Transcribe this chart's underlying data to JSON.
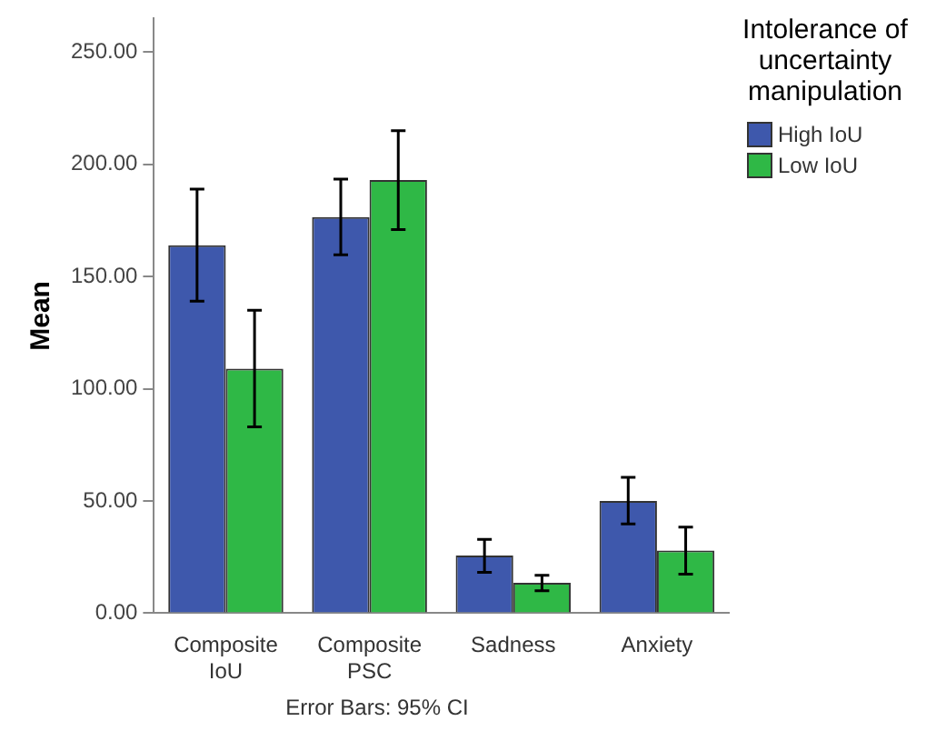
{
  "chart_data": {
    "type": "bar",
    "ylabel": "Mean",
    "legend_title": "Intolerance of uncertainty manipulation",
    "legend": "top right",
    "grid": false,
    "categories": [
      "Composite IoU",
      "Composite PSC",
      "Sadness",
      "Anxiety"
    ],
    "series": [
      {
        "name": "High IoU",
        "color": "#3e58ac",
        "values": [
          164,
          176.5,
          25.7,
          50
        ],
        "errors": [
          [
            139,
            189
          ],
          [
            159.7,
            193.4
          ],
          [
            18.2,
            32.9
          ],
          [
            39.8,
            60.5
          ]
        ]
      },
      {
        "name": "Low IoU",
        "color": "#2fb846",
        "values": [
          109,
          193,
          13.5,
          27.9
        ],
        "errors": [
          [
            83,
            135
          ],
          [
            171,
            215
          ],
          [
            10,
            16.9
          ],
          [
            17.4,
            38.4
          ]
        ]
      }
    ],
    "ylim": [
      0,
      265
    ],
    "yticks": [
      {
        "value": 0,
        "label": "0.00"
      },
      {
        "value": 50,
        "label": "50.00"
      },
      {
        "value": 100,
        "label": "100.00"
      },
      {
        "value": 150,
        "label": "150.00"
      },
      {
        "value": 200,
        "label": "200.00"
      },
      {
        "value": 250,
        "label": "250.00"
      }
    ],
    "annotations": [
      "Error Bars: 95% CI"
    ]
  }
}
